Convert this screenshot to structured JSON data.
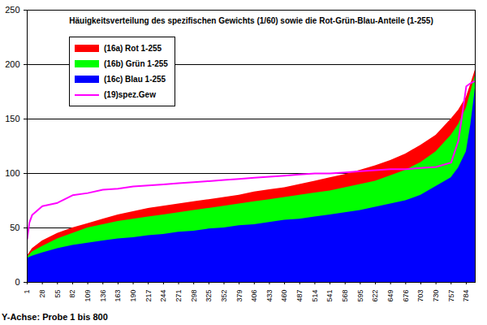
{
  "chart_data": {
    "type": "area",
    "title": "Häuigkeitsverteilung des spezifischen Gewichts (1/60) sowie die Rot-Grün-Blau-Anteile (1-255)",
    "xlabel": "Y-Achse: Probe 1 bis 800",
    "x": [
      1,
      5,
      10,
      28,
      55,
      82,
      109,
      136,
      163,
      190,
      217,
      244,
      271,
      298,
      325,
      352,
      379,
      406,
      433,
      460,
      487,
      514,
      541,
      568,
      595,
      622,
      649,
      676,
      703,
      730,
      757,
      770,
      784,
      792,
      800
    ],
    "series": [
      {
        "name": "(16a) Rot 1-255",
        "color": "#ff0000",
        "type": "area",
        "values": [
          24,
          27,
          31,
          38,
          45,
          50,
          54,
          58,
          62,
          65,
          68,
          70,
          72,
          74,
          76,
          78,
          80,
          83,
          85,
          87,
          90,
          93,
          96,
          99,
          103,
          107,
          112,
          118,
          126,
          135,
          150,
          158,
          170,
          182,
          195
        ]
      },
      {
        "name": "(16b) Grün 1-255",
        "color": "#00ff00",
        "type": "area",
        "values": [
          23,
          25,
          28,
          33,
          40,
          45,
          50,
          53,
          56,
          58,
          60,
          62,
          64,
          66,
          68,
          70,
          72,
          74,
          76,
          78,
          80,
          82,
          84,
          87,
          90,
          93,
          98,
          103,
          110,
          120,
          135,
          145,
          160,
          175,
          190
        ]
      },
      {
        "name": "(16c) Blau 1-255",
        "color": "#0000ff",
        "type": "area",
        "values": [
          22,
          23,
          24,
          27,
          31,
          34,
          36,
          38,
          40,
          41,
          43,
          44,
          46,
          47,
          49,
          50,
          52,
          53,
          55,
          57,
          58,
          60,
          62,
          64,
          66,
          69,
          72,
          75,
          80,
          88,
          96,
          105,
          120,
          145,
          178
        ]
      },
      {
        "name": "(19)spez.Gew",
        "color": "#ff00ff",
        "type": "line",
        "line_style": "solid",
        "values": [
          40,
          55,
          62,
          70,
          73,
          80,
          82,
          85,
          86,
          88,
          89,
          90,
          91,
          92,
          93,
          94,
          95,
          96,
          97,
          98,
          99,
          100,
          100,
          101,
          102,
          103,
          104,
          104,
          105,
          106,
          110,
          130,
          180,
          183,
          185
        ]
      }
    ],
    "xlim": [
      1,
      800
    ],
    "xticks": [
      1,
      28,
      55,
      82,
      109,
      136,
      163,
      190,
      217,
      244,
      271,
      298,
      325,
      352,
      379,
      406,
      433,
      460,
      487,
      514,
      541,
      568,
      595,
      622,
      649,
      676,
      703,
      730,
      757,
      784
    ],
    "ylim": [
      0,
      250
    ],
    "yticks": [
      0,
      50,
      100,
      150,
      200,
      250
    ],
    "grid": true,
    "legend": "top-left"
  }
}
